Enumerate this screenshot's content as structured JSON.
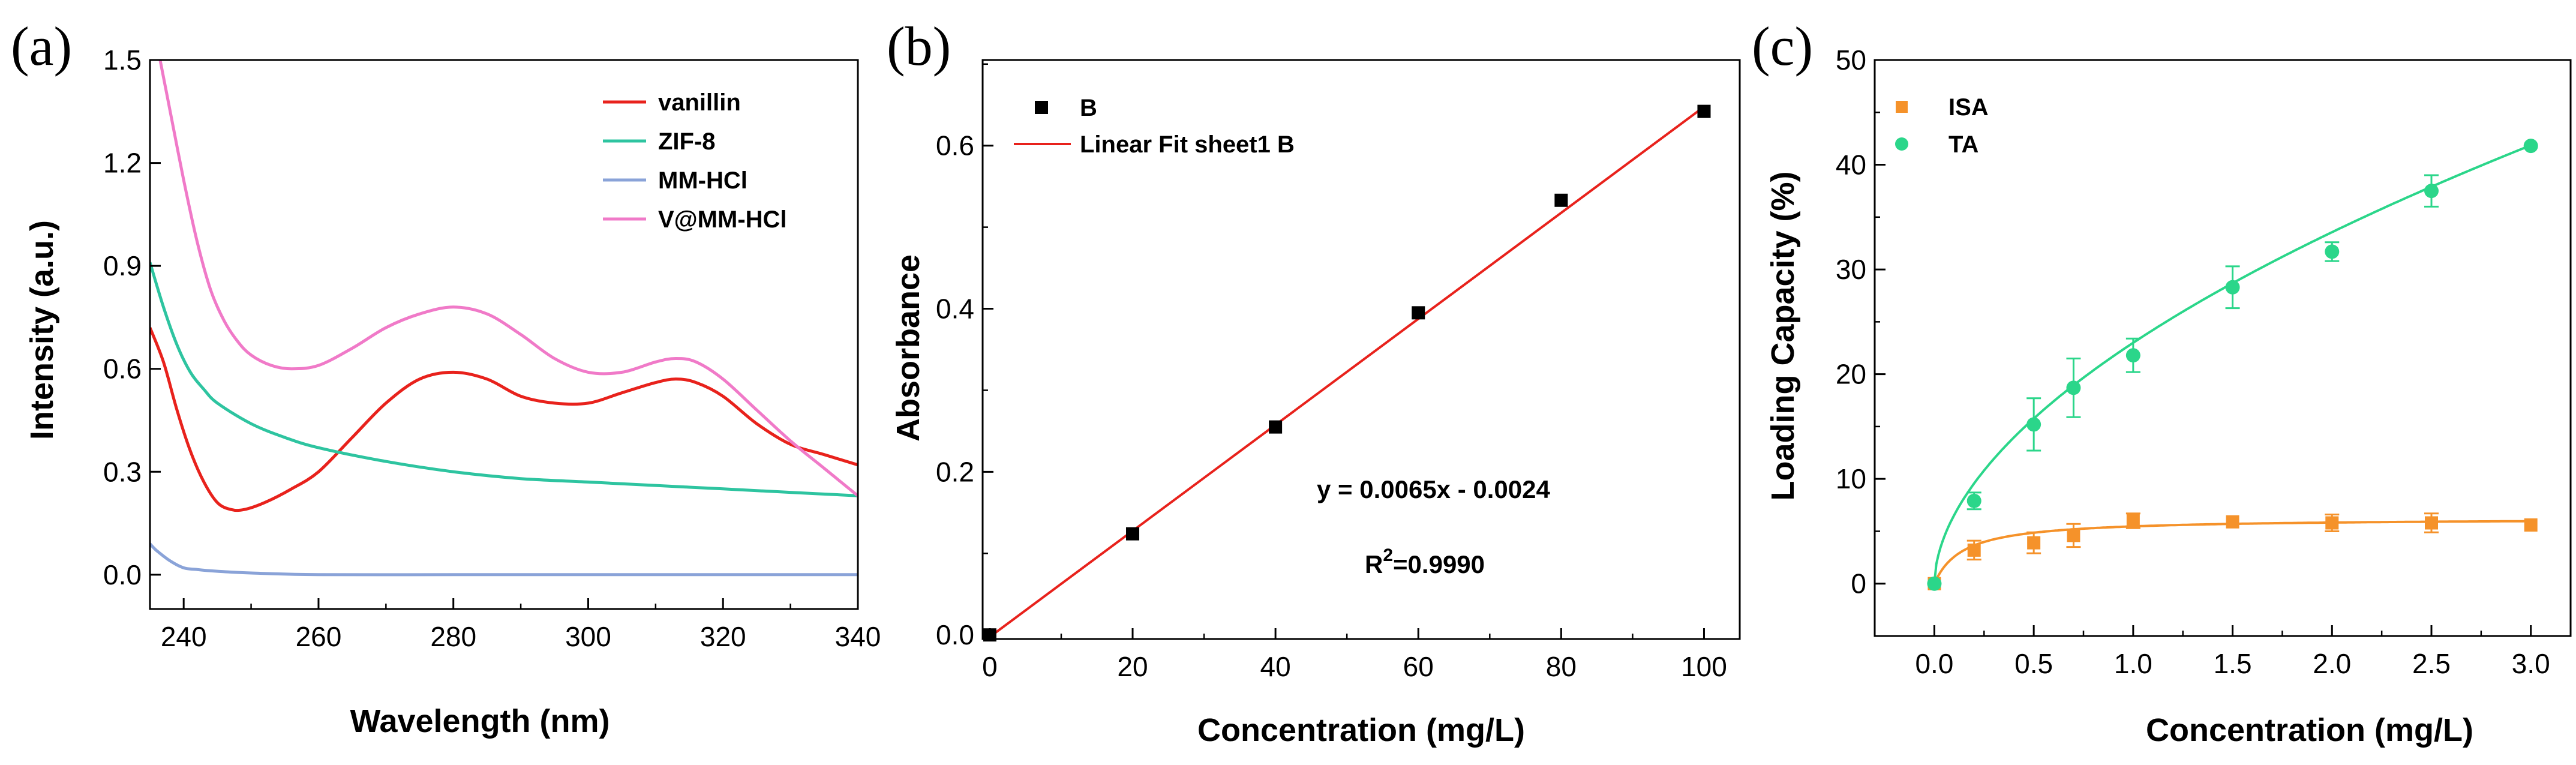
{
  "chart_data": [
    {
      "panel": "(a)",
      "type": "line",
      "xlabel": "Wavelength (nm)",
      "ylabel": "Intensity (a.u.)",
      "xlim": [
        235,
        340
      ],
      "ylim": [
        -0.1,
        1.5
      ],
      "xticks": [
        240,
        260,
        280,
        300,
        320,
        340
      ],
      "yticks": [
        0.0,
        0.3,
        0.6,
        0.9,
        1.2,
        1.5
      ],
      "xtick_labels": [
        "240",
        "260",
        "280",
        "300",
        "320",
        "340"
      ],
      "ytick_labels": [
        "0.0",
        "0.3",
        "0.6",
        "0.9",
        "1.2",
        "1.5"
      ],
      "legend_position": "top-right",
      "series": [
        {
          "name": "vanillin",
          "color": "#e8221c",
          "x": [
            235,
            237,
            239,
            241,
            243,
            245,
            247,
            249,
            252,
            256,
            260,
            265,
            270,
            275,
            280,
            285,
            290,
            295,
            300,
            305,
            310,
            313,
            316,
            320,
            325,
            330,
            335,
            340
          ],
          "y": [
            0.72,
            0.62,
            0.48,
            0.36,
            0.27,
            0.21,
            0.19,
            0.19,
            0.21,
            0.25,
            0.3,
            0.4,
            0.5,
            0.57,
            0.59,
            0.57,
            0.52,
            0.5,
            0.5,
            0.53,
            0.56,
            0.57,
            0.56,
            0.52,
            0.44,
            0.38,
            0.35,
            0.32
          ]
        },
        {
          "name": "ZIF-8",
          "color": "#2ec4a0",
          "x": [
            235,
            237,
            239,
            241,
            243,
            245,
            250,
            255,
            260,
            270,
            280,
            290,
            300,
            310,
            320,
            330,
            340
          ],
          "y": [
            0.91,
            0.78,
            0.67,
            0.59,
            0.54,
            0.5,
            0.44,
            0.4,
            0.37,
            0.33,
            0.3,
            0.28,
            0.27,
            0.26,
            0.25,
            0.24,
            0.23
          ]
        },
        {
          "name": "MM-HCl",
          "color": "#8aa3d8",
          "x": [
            235,
            236,
            238,
            240,
            242,
            245,
            250,
            260,
            280,
            300,
            320,
            340
          ],
          "y": [
            0.09,
            0.07,
            0.04,
            0.02,
            0.015,
            0.01,
            0.005,
            0.0,
            0.0,
            0.0,
            0.0,
            0.0
          ]
        },
        {
          "name": "V@MM-HCl",
          "color": "#f07ac8",
          "x": [
            236.5,
            238,
            240,
            242,
            244,
            246,
            248,
            250,
            253,
            256,
            260,
            265,
            270,
            275,
            280,
            285,
            290,
            295,
            300,
            305,
            310,
            313,
            316,
            320,
            325,
            330,
            335,
            340
          ],
          "y": [
            1.5,
            1.35,
            1.15,
            0.97,
            0.83,
            0.74,
            0.68,
            0.64,
            0.61,
            0.6,
            0.61,
            0.66,
            0.72,
            0.76,
            0.78,
            0.76,
            0.7,
            0.63,
            0.59,
            0.59,
            0.62,
            0.63,
            0.62,
            0.57,
            0.48,
            0.39,
            0.31,
            0.23
          ]
        }
      ]
    },
    {
      "panel": "(b)",
      "type": "scatter",
      "xlabel": "Concentration (mg/L)",
      "ylabel": "Absorbance",
      "xlim": [
        -1,
        105
      ],
      "ylim": [
        -0.005,
        0.705
      ],
      "xticks": [
        0,
        20,
        40,
        60,
        80,
        100
      ],
      "yticks": [
        0.0,
        0.2,
        0.4,
        0.6
      ],
      "xtick_labels": [
        "0",
        "20",
        "40",
        "60",
        "80",
        "100"
      ],
      "ytick_labels": [
        "0.0",
        "0.2",
        "0.4",
        "0.6"
      ],
      "legend_position": "top-left",
      "series": [
        {
          "name": "B",
          "color": "#000000",
          "x": [
            0,
            20,
            40,
            60,
            80,
            100
          ],
          "y": [
            0.0,
            0.124,
            0.255,
            0.395,
            0.533,
            0.642
          ]
        }
      ],
      "fit": {
        "name": "Linear Fit sheet1 B",
        "color": "#e8221c",
        "slope": 0.0065,
        "intercept": -0.0024,
        "x_range": [
          0,
          100
        ]
      },
      "annotations": {
        "equation": "y = 0.0065x - 0.0024",
        "r2_prefix": "R",
        "r2_sup": "2",
        "r2_value": "=0.9990"
      }
    },
    {
      "panel": "(c)",
      "type": "scatter",
      "xlabel": "Concentration (mg/L)",
      "ylabel": "Loading Capacity (%)",
      "xlim": [
        -0.3,
        3.2
      ],
      "ylim": [
        -5,
        50
      ],
      "xticks": [
        0.0,
        0.5,
        1.0,
        1.5,
        2.0,
        2.5,
        3.0
      ],
      "yticks": [
        0,
        10,
        20,
        30,
        40,
        50
      ],
      "xtick_labels": [
        "0.0",
        "0.5",
        "1.0",
        "1.5",
        "2.0",
        "2.5",
        "3.0"
      ],
      "ytick_labels": [
        "0",
        "10",
        "20",
        "30",
        "40",
        "50"
      ],
      "legend_position": "top-left",
      "series": [
        {
          "name": "ISA",
          "color": "#f5922a",
          "marker": "square",
          "x": [
            0,
            0.2,
            0.5,
            0.7,
            1.0,
            1.5,
            2.0,
            2.5,
            3.0
          ],
          "y": [
            0,
            3.2,
            3.9,
            4.6,
            6.0,
            5.9,
            5.8,
            5.8,
            5.6
          ],
          "err": [
            0,
            0.9,
            1.0,
            1.1,
            0.7,
            0,
            0.8,
            0.9,
            0
          ]
        },
        {
          "name": "TA",
          "color": "#2bd68a",
          "marker": "circle",
          "x": [
            0,
            0.2,
            0.5,
            0.7,
            1.0,
            1.5,
            2.0,
            2.5,
            3.0
          ],
          "y": [
            0,
            7.9,
            15.2,
            18.7,
            21.8,
            28.3,
            31.7,
            37.5,
            41.8
          ],
          "err": [
            0,
            0.8,
            2.5,
            2.8,
            1.6,
            2.0,
            0.9,
            1.5,
            0
          ]
        }
      ],
      "fits": [
        {
          "series": "ISA",
          "model": "langmuir",
          "qmax": 6.25,
          "k": 7.0
        },
        {
          "series": "TA",
          "model": "power",
          "a": 23.0,
          "n": 0.545
        }
      ]
    }
  ]
}
